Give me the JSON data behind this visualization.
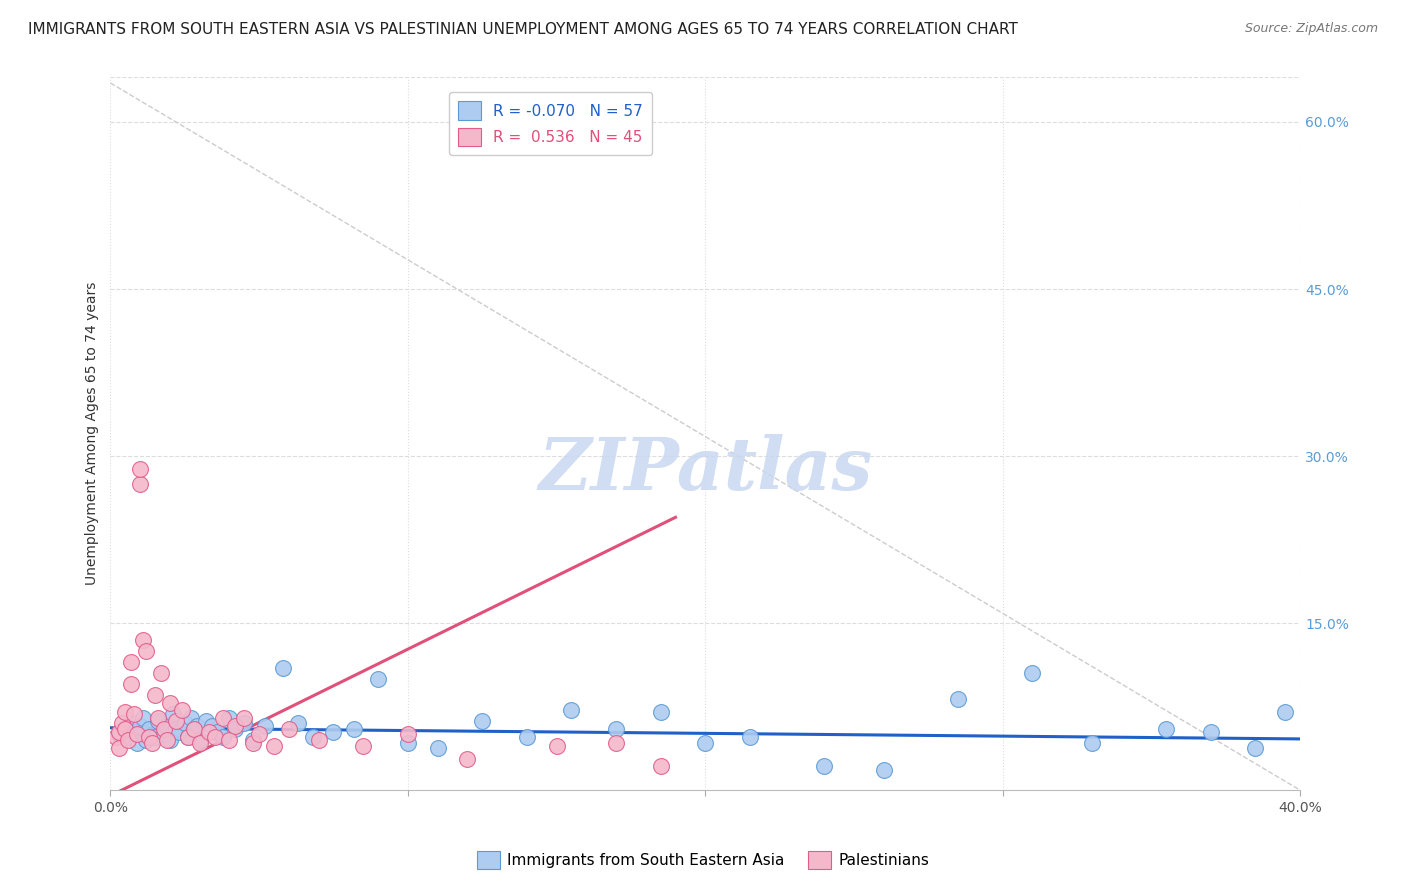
{
  "title": "IMMIGRANTS FROM SOUTH EASTERN ASIA VS PALESTINIAN UNEMPLOYMENT AMONG AGES 65 TO 74 YEARS CORRELATION CHART",
  "source": "Source: ZipAtlas.com",
  "ylabel": "Unemployment Among Ages 65 to 74 years",
  "xlim": [
    0.0,
    0.4
  ],
  "ylim": [
    0.0,
    0.64
  ],
  "xticks": [
    0.0,
    0.1,
    0.2,
    0.3,
    0.4
  ],
  "xtick_labels": [
    "0.0%",
    "",
    "",
    "",
    "40.0%"
  ],
  "ytick_labels_right": [
    "60.0%",
    "45.0%",
    "30.0%",
    "15.0%"
  ],
  "ytick_positions_right": [
    0.6,
    0.45,
    0.3,
    0.15
  ],
  "legend_label_blue": "R = -0.070   N = 57",
  "legend_label_pink": "R =  0.536   N = 45",
  "watermark": "ZIPatlas",
  "series_blue": {
    "name": "Immigrants from South Eastern Asia",
    "color": "#aecbf0",
    "border_color": "#5b9bd5",
    "x": [
      0.003,
      0.005,
      0.006,
      0.007,
      0.008,
      0.009,
      0.01,
      0.011,
      0.012,
      0.013,
      0.015,
      0.016,
      0.018,
      0.019,
      0.02,
      0.021,
      0.022,
      0.023,
      0.025,
      0.026,
      0.027,
      0.028,
      0.029,
      0.03,
      0.032,
      0.034,
      0.036,
      0.038,
      0.04,
      0.042,
      0.045,
      0.048,
      0.052,
      0.058,
      0.063,
      0.068,
      0.075,
      0.082,
      0.09,
      0.1,
      0.11,
      0.125,
      0.14,
      0.155,
      0.17,
      0.185,
      0.2,
      0.215,
      0.24,
      0.26,
      0.285,
      0.31,
      0.33,
      0.355,
      0.37,
      0.385,
      0.395
    ],
    "y": [
      0.05,
      0.055,
      0.048,
      0.06,
      0.052,
      0.042,
      0.058,
      0.065,
      0.045,
      0.055,
      0.048,
      0.062,
      0.05,
      0.058,
      0.045,
      0.068,
      0.055,
      0.052,
      0.06,
      0.048,
      0.065,
      0.055,
      0.058,
      0.045,
      0.062,
      0.058,
      0.052,
      0.048,
      0.065,
      0.055,
      0.06,
      0.045,
      0.058,
      0.11,
      0.06,
      0.048,
      0.052,
      0.055,
      0.1,
      0.042,
      0.038,
      0.062,
      0.048,
      0.072,
      0.055,
      0.07,
      0.042,
      0.048,
      0.022,
      0.018,
      0.082,
      0.105,
      0.042,
      0.055,
      0.052,
      0.038,
      0.07
    ]
  },
  "series_pink": {
    "name": "Palestinians",
    "color": "#f5b8cb",
    "border_color": "#e05c8a",
    "x": [
      0.002,
      0.003,
      0.003,
      0.004,
      0.005,
      0.005,
      0.006,
      0.007,
      0.007,
      0.008,
      0.009,
      0.01,
      0.01,
      0.011,
      0.012,
      0.013,
      0.014,
      0.015,
      0.016,
      0.017,
      0.018,
      0.019,
      0.02,
      0.022,
      0.024,
      0.026,
      0.028,
      0.03,
      0.033,
      0.035,
      0.038,
      0.04,
      0.042,
      0.045,
      0.048,
      0.05,
      0.055,
      0.06,
      0.07,
      0.085,
      0.1,
      0.12,
      0.15,
      0.17,
      0.185
    ],
    "y": [
      0.048,
      0.052,
      0.038,
      0.06,
      0.055,
      0.07,
      0.045,
      0.095,
      0.115,
      0.068,
      0.05,
      0.275,
      0.288,
      0.135,
      0.125,
      0.048,
      0.042,
      0.085,
      0.065,
      0.105,
      0.055,
      0.045,
      0.078,
      0.062,
      0.072,
      0.048,
      0.055,
      0.042,
      0.052,
      0.048,
      0.065,
      0.045,
      0.058,
      0.065,
      0.042,
      0.05,
      0.04,
      0.055,
      0.045,
      0.04,
      0.05,
      0.028,
      0.04,
      0.042,
      0.022
    ]
  },
  "blue_trend_x": [
    0.0,
    0.4
  ],
  "blue_trend_y": [
    0.056,
    0.046
  ],
  "pink_trend_x": [
    0.0,
    0.19
  ],
  "pink_trend_y": [
    -0.005,
    0.245
  ],
  "dashed_line_x": [
    0.0,
    0.4
  ],
  "dashed_line_y": [
    0.635,
    0.0
  ],
  "background_color": "#ffffff",
  "grid_color": "#dddddd",
  "title_fontsize": 11,
  "axis_label_fontsize": 10,
  "tick_fontsize": 10,
  "watermark_color": "#c8d8f0",
  "watermark_fontsize": 52
}
